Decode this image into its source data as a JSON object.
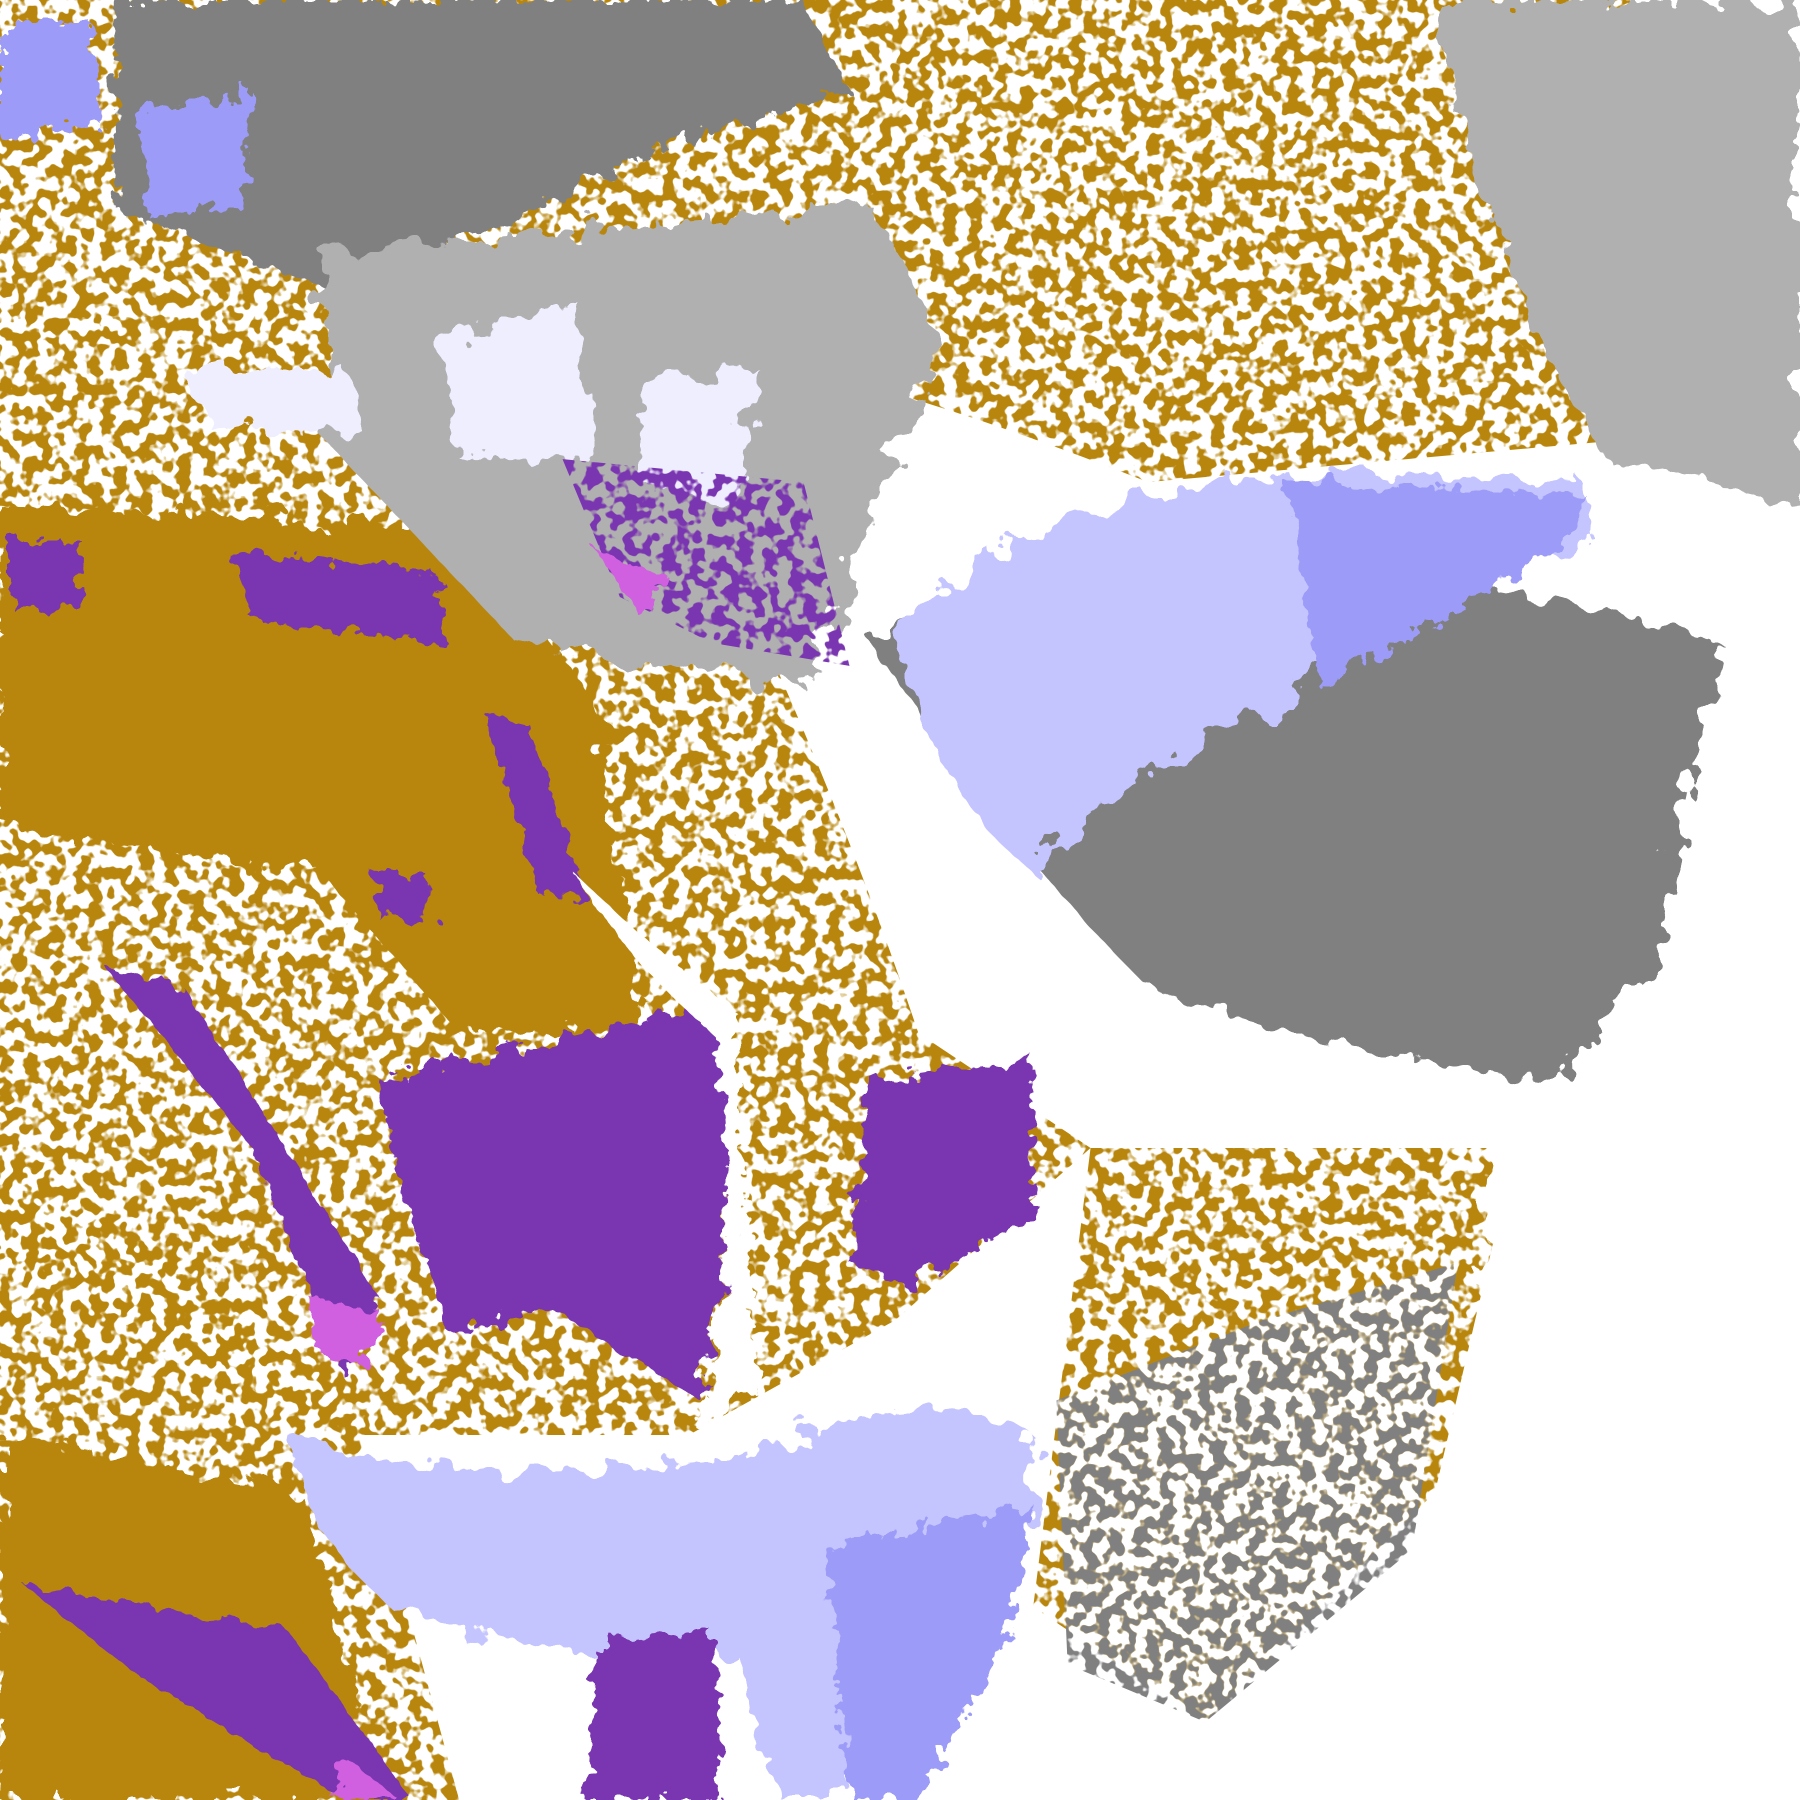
{
  "map": {
    "background": "#ffffff",
    "colors": {
      "gold_dark": "#b8860b",
      "gold_bright": "#e0b000",
      "gray_dark": "#808080",
      "gray_light": "#b0b0b0",
      "lavender_pale": "#eeeeff",
      "lavender": "#c4c4ff",
      "periwinkle": "#9c9cf8",
      "purple": "#7a35b0",
      "magenta": "#d060e0"
    }
  }
}
